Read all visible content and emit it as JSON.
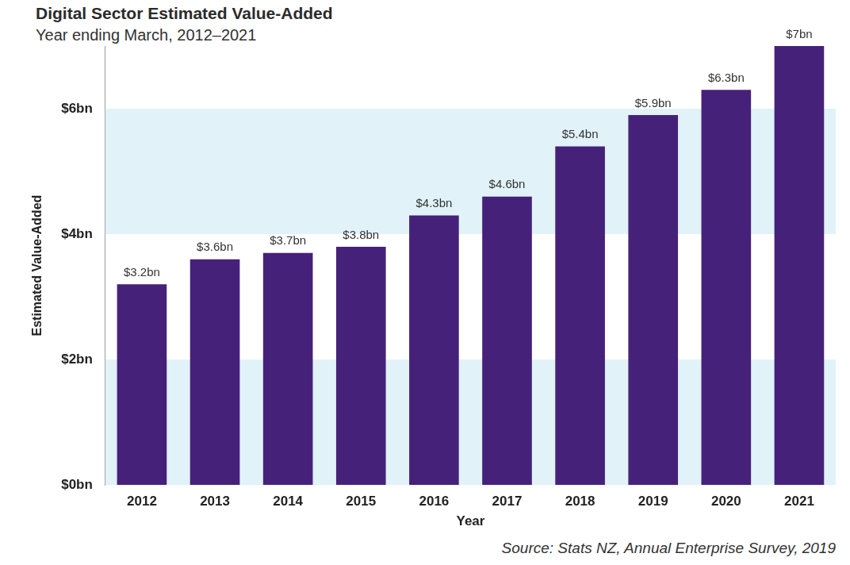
{
  "chart_data": {
    "type": "bar",
    "title": "Digital Sector Estimated Value-Added",
    "subtitle": "Year ending March, 2012–2021",
    "x_label": "Year",
    "y_label": "Estimated Value-Added",
    "source": "Source: Stats NZ, Annual Enterprise Survey, 2019",
    "categories": [
      "2012",
      "2013",
      "2014",
      "2015",
      "2016",
      "2017",
      "2018",
      "2019",
      "2020",
      "2021"
    ],
    "values": [
      3.2,
      3.6,
      3.7,
      3.8,
      4.3,
      4.6,
      5.4,
      5.9,
      6.3,
      7
    ],
    "value_labels": [
      "$3.2bn",
      "$3.6bn",
      "$3.7bn",
      "$3.8bn",
      "$4.3bn",
      "$4.6bn",
      "$5.4bn",
      "$5.9bn",
      "$6.3bn",
      "$7bn"
    ],
    "color": "#46217a",
    "ylim": [
      0,
      7
    ],
    "yticks": [
      {
        "value": 0,
        "label": "$0bn"
      },
      {
        "value": 2,
        "label": "$2bn"
      },
      {
        "value": 4,
        "label": "$4bn"
      },
      {
        "value": 6,
        "label": "$6bn"
      }
    ],
    "grid": true,
    "data_labels": true
  }
}
